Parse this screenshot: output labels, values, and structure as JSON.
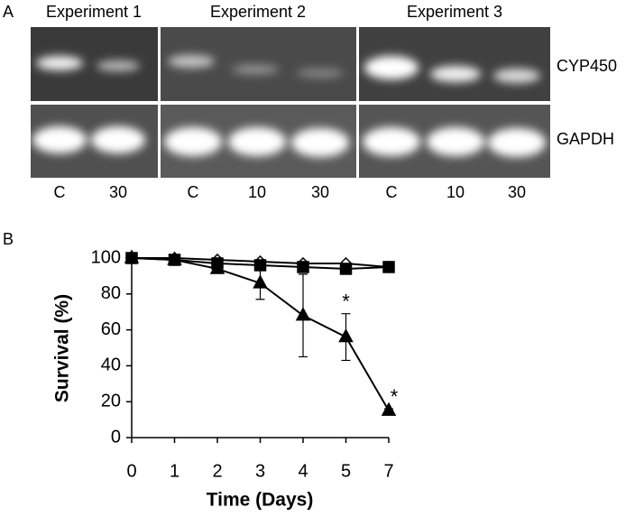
{
  "panel_a": {
    "label": "A",
    "experiments": [
      "Experiment 1",
      "Experiment 2",
      "Experiment 3"
    ],
    "rows": [
      "CYP450",
      "GAPDH"
    ],
    "lanes": [
      [
        "C",
        "30"
      ],
      [
        "C",
        "10",
        "30"
      ],
      [
        "C",
        "10",
        "30"
      ]
    ]
  },
  "chart_data": {
    "type": "line",
    "panel_label": "B",
    "xlabel": "Time (Days)",
    "ylabel": "Survival (%)",
    "categories": [
      "0",
      "1",
      "2",
      "3",
      "4",
      "5",
      "7"
    ],
    "ylim": [
      0,
      100
    ],
    "yticks": [
      0,
      20,
      40,
      60,
      80,
      100
    ],
    "series": [
      {
        "color": "#000000",
        "marker": "diamond",
        "marker_fill": "#ffffff",
        "values": [
          100,
          100,
          99,
          98,
          97,
          97,
          95
        ]
      },
      {
        "color": "#000000",
        "marker": "square",
        "marker_fill": "#000000",
        "values": [
          100,
          99,
          97,
          96,
          95,
          94,
          95
        ]
      },
      {
        "color": "#000000",
        "marker": "triangle",
        "marker_fill": "#000000",
        "values": [
          100,
          99,
          94,
          86,
          68,
          56,
          15
        ],
        "errors": [
          0,
          0,
          2,
          9,
          23,
          13,
          1
        ],
        "marker_labels": [
          null,
          null,
          null,
          null,
          null,
          "*",
          "*"
        ]
      }
    ]
  }
}
